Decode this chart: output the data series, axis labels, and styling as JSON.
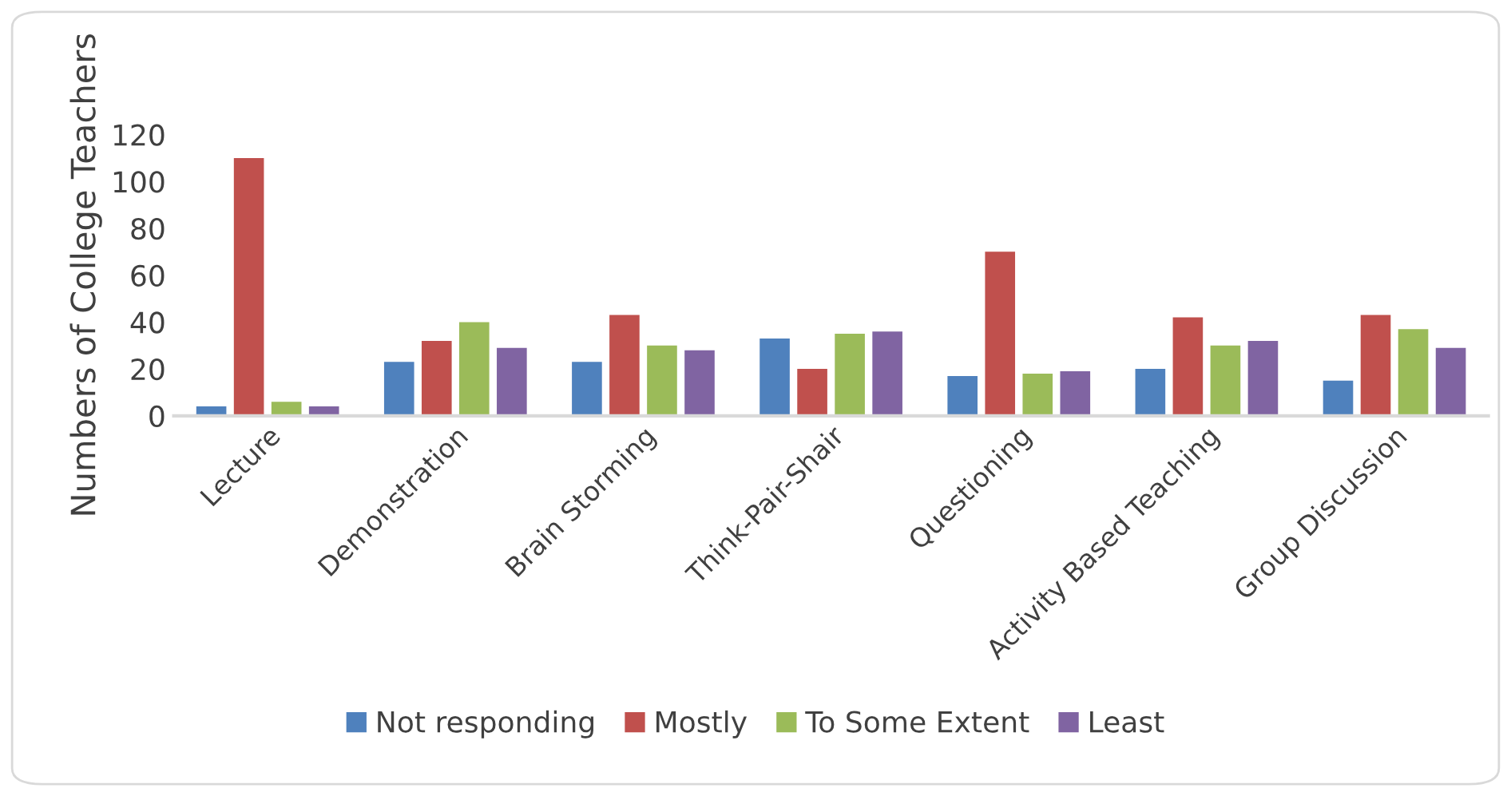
{
  "chart_data": {
    "type": "bar",
    "ylabel": "Numbers of College Teachers",
    "categories": [
      "Lecture",
      "Demonstration",
      "Brain Storming",
      "Think-Pair-Shair",
      "Questioning",
      "Activity Based Teaching",
      "Group Discussion"
    ],
    "series": [
      {
        "name": "Not responding",
        "color": "#4f81bd",
        "values": [
          4,
          23,
          23,
          33,
          17,
          20,
          15
        ]
      },
      {
        "name": "Mostly",
        "color": "#c0504d",
        "values": [
          110,
          32,
          43,
          20,
          70,
          42,
          43
        ]
      },
      {
        "name": "To Some Extent",
        "color": "#9bbb59",
        "values": [
          6,
          40,
          30,
          35,
          18,
          30,
          37
        ]
      },
      {
        "name": "Least",
        "color": "#8064a2",
        "values": [
          4,
          29,
          28,
          36,
          19,
          32,
          29
        ]
      }
    ],
    "ylim": [
      0,
      120
    ],
    "yticks": [
      0,
      20,
      40,
      60,
      80,
      100,
      120
    ],
    "grid": false,
    "legend": "bottom"
  }
}
